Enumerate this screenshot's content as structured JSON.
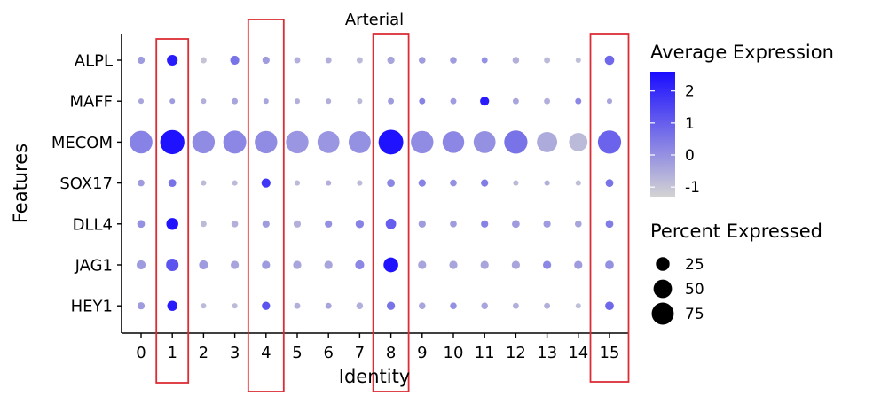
{
  "chart_data": {
    "type": "dotplot",
    "title": "Arterial",
    "xlabel": "Identity",
    "ylabel": "Features",
    "categories": [
      "0",
      "1",
      "2",
      "3",
      "4",
      "5",
      "6",
      "7",
      "8",
      "9",
      "10",
      "11",
      "12",
      "13",
      "14",
      "15"
    ],
    "features": [
      "ALPL",
      "MAFF",
      "MECOM",
      "SOX17",
      "DLL4",
      "JAG1",
      "HEY1"
    ],
    "highlighted_identities": [
      "1",
      "4",
      "8",
      "15"
    ],
    "highlight_color": "#dc2d36",
    "avg_expression": [
      [
        -0.2,
        2.3,
        -1.0,
        0.6,
        -0.2,
        -0.6,
        -0.6,
        -0.8,
        -0.4,
        -0.2,
        -0.2,
        0.0,
        -0.6,
        -0.8,
        -0.9,
        0.8
      ],
      [
        -0.4,
        -0.2,
        -0.6,
        -0.4,
        -0.4,
        -0.6,
        -0.6,
        -0.8,
        -0.2,
        0.3,
        -0.2,
        2.3,
        -0.4,
        -0.6,
        0.2,
        -0.4
      ],
      [
        0.3,
        2.5,
        0.1,
        0.2,
        0.1,
        -0.1,
        -0.1,
        0.0,
        2.5,
        0.1,
        0.2,
        0.0,
        0.6,
        -0.5,
        -0.8,
        0.9
      ],
      [
        -0.2,
        0.6,
        -0.8,
        -0.8,
        1.8,
        -0.8,
        -0.6,
        -0.8,
        0.2,
        0.3,
        0.0,
        0.4,
        -0.8,
        -0.6,
        -0.9,
        0.6
      ],
      [
        0.0,
        2.5,
        -0.8,
        -0.6,
        -0.2,
        -0.6,
        0.0,
        0.3,
        1.0,
        -0.2,
        -0.2,
        0.3,
        -0.2,
        -0.2,
        -0.4,
        0.4
      ],
      [
        -0.2,
        1.2,
        -0.2,
        -0.4,
        -0.2,
        -0.4,
        -0.4,
        0.2,
        2.5,
        -0.4,
        -0.4,
        -0.4,
        -0.4,
        0.2,
        -0.2,
        0.0
      ],
      [
        -0.2,
        2.3,
        -0.8,
        -0.8,
        1.2,
        -0.6,
        -0.4,
        -0.6,
        0.6,
        -0.4,
        0.0,
        -0.4,
        -0.6,
        -0.6,
        -0.9,
        0.8
      ]
    ],
    "pct_expressed": [
      [
        5,
        14,
        3,
        9,
        5,
        3,
        3,
        3,
        5,
        4,
        4,
        3,
        4,
        3,
        2,
        10
      ],
      [
        2,
        2,
        2,
        3,
        2,
        2,
        2,
        2,
        3,
        3,
        3,
        9,
        3,
        3,
        3,
        2
      ],
      [
        80,
        92,
        78,
        82,
        78,
        78,
        74,
        75,
        96,
        78,
        72,
        74,
        84,
        62,
        50,
        84
      ],
      [
        4,
        6,
        2,
        2,
        9,
        2,
        2,
        2,
        6,
        5,
        4,
        5,
        2,
        2,
        2,
        6
      ],
      [
        6,
        18,
        3,
        4,
        5,
        5,
        5,
        7,
        13,
        5,
        4,
        5,
        6,
        5,
        4,
        6
      ],
      [
        9,
        20,
        9,
        7,
        7,
        7,
        7,
        9,
        30,
        7,
        7,
        7,
        7,
        7,
        7,
        8
      ],
      [
        5,
        12,
        2,
        2,
        7,
        3,
        3,
        4,
        7,
        4,
        4,
        4,
        3,
        3,
        2,
        8
      ]
    ],
    "color_legend": {
      "title": "Average Expression",
      "ticks": [
        "2",
        "1",
        "0",
        "-1"
      ],
      "tick_values": [
        2,
        1,
        0,
        -1
      ],
      "range": [
        -1.3,
        2.6
      ],
      "low_color": "#d3d3d3",
      "high_color": "#1a0dff"
    },
    "size_legend": {
      "title": "Percent Expressed",
      "values": [
        25,
        50,
        75
      ],
      "labels": [
        "25",
        "50",
        "75"
      ]
    }
  }
}
